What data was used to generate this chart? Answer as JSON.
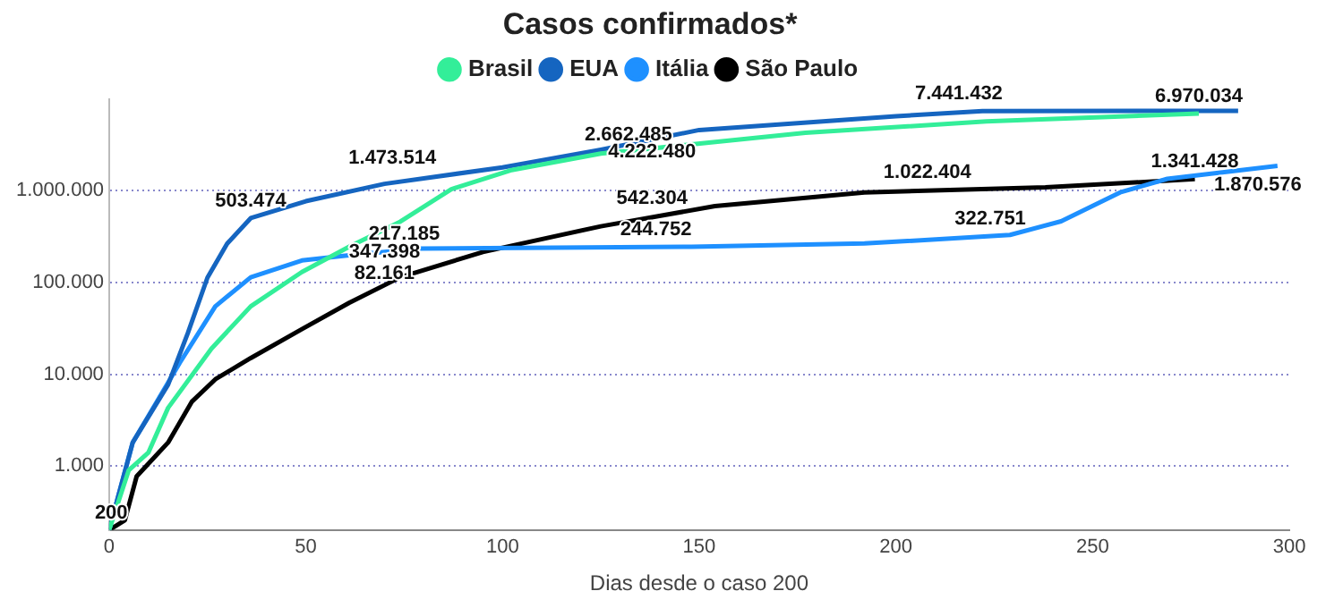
{
  "chart_data": {
    "type": "line",
    "title": "Casos confirmados*",
    "xlabel": "Dias desde o caso 200",
    "xlim": [
      0,
      300
    ],
    "xticks": [
      0,
      50,
      100,
      150,
      200,
      250,
      300
    ],
    "ylim": [
      200,
      10000000
    ],
    "yticks": [
      {
        "value": 1000,
        "label": "1.000"
      },
      {
        "value": 10000,
        "label": "10.000"
      },
      {
        "value": 100000,
        "label": "100.000"
      },
      {
        "value": 1000000,
        "label": "1.000.000"
      }
    ],
    "log": "y",
    "grid": "y",
    "legend": "top",
    "marker": "none",
    "line_style": "solid",
    "series": [
      {
        "name": "Brasil",
        "color": "#33ee99",
        "x": [
          0,
          5,
          10,
          15,
          26,
          36,
          49,
          61,
          74,
          87,
          102,
          125,
          148,
          177,
          223,
          277
        ],
        "values": [
          200,
          900,
          1400,
          4300,
          19000,
          55000,
          130000,
          245000,
          460000,
          1040000,
          1670000,
          2550000,
          3200000,
          4300000,
          5700000,
          6970000
        ]
      },
      {
        "name": "EUA",
        "color": "#1565c0",
        "x": [
          0,
          6,
          15,
          20,
          25,
          30,
          36,
          50,
          70,
          100,
          125,
          150,
          200,
          222,
          287
        ],
        "values": [
          200,
          1800,
          7700,
          28000,
          113000,
          265000,
          503474,
          770000,
          1190000,
          1800000,
          2800000,
          4600000,
          6500000,
          7400000,
          7450000
        ]
      },
      {
        "name": "Itália",
        "color": "#1e90ff",
        "x": [
          0,
          6,
          18,
          27,
          36,
          49,
          61,
          79,
          148,
          192,
          229,
          242,
          257,
          269,
          297
        ],
        "values": [
          200,
          1800,
          13400,
          55000,
          114000,
          174000,
          198000,
          235000,
          245000,
          266000,
          330000,
          465000,
          960000,
          1350000,
          1870000
        ]
      },
      {
        "name": "São Paulo",
        "color": "#000000",
        "x": [
          0,
          4,
          7,
          15,
          21,
          27,
          36,
          49,
          61,
          74,
          95,
          125,
          154,
          192,
          238,
          276
        ],
        "values": [
          200,
          255,
          770,
          1800,
          5000,
          8800,
          15000,
          31000,
          60000,
          114000,
          215000,
          410000,
          680000,
          960000,
          1090000,
          1340000
        ]
      }
    ],
    "annotations": [
      {
        "text": "200",
        "x": 0,
        "y": 200
      },
      {
        "text": "503.474",
        "x": 36,
        "y": 503474
      },
      {
        "text": "1.473.514",
        "x": 72,
        "y": 1473514
      },
      {
        "text": "347.398",
        "x": 70,
        "y": 347398
      },
      {
        "text": "217.185",
        "x": 75,
        "y": 217185
      },
      {
        "text": "82.161",
        "x": 70,
        "y": 82161
      },
      {
        "text": "4.222.480",
        "x": 138,
        "y": 4222480
      },
      {
        "text": "2.662.485",
        "x": 132,
        "y": 2662485
      },
      {
        "text": "542.304",
        "x": 138,
        "y": 542304
      },
      {
        "text": "244.752",
        "x": 139,
        "y": 244752
      },
      {
        "text": "1.022.404",
        "x": 208,
        "y": 1022404
      },
      {
        "text": "7.441.432",
        "x": 216,
        "y": 7441432
      },
      {
        "text": "322.751",
        "x": 224,
        "y": 322751
      },
      {
        "text": "6.970.034",
        "x": 277,
        "y": 6970034
      },
      {
        "text": "1.870.576",
        "x": 292,
        "y": 1870576
      },
      {
        "text": "1.341.428",
        "x": 276,
        "y": 1341428
      }
    ]
  }
}
